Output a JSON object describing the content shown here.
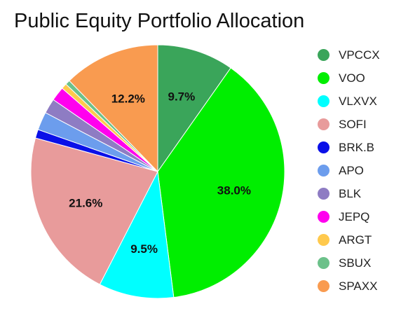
{
  "chart_data": {
    "type": "pie",
    "title": "Public Equity Portfolio Allocation",
    "start_angle": "12 o'clock",
    "direction": "clockwise",
    "legend_position": "right",
    "slices": [
      {
        "label": "VPCCX",
        "value": 9.7,
        "color": "#3aa55a",
        "data_label": "9.7%"
      },
      {
        "label": "VOO",
        "value": 38.0,
        "color": "#00ee00",
        "data_label": "38.0%"
      },
      {
        "label": "VLXVX",
        "value": 9.5,
        "color": "#00ffff",
        "data_label": "9.5%"
      },
      {
        "label": "SOFI",
        "value": 21.6,
        "color": "#e89b9b",
        "data_label": "21.6%"
      },
      {
        "label": "BRK.B",
        "value": 1.1,
        "color": "#0a10e8",
        "data_label": ""
      },
      {
        "label": "APO",
        "value": 2.3,
        "color": "#6c9ded",
        "data_label": ""
      },
      {
        "label": "BLK",
        "value": 1.9,
        "color": "#8e7cc3",
        "data_label": ""
      },
      {
        "label": "JEPQ",
        "value": 1.8,
        "color": "#ff00ee",
        "data_label": ""
      },
      {
        "label": "ARGT",
        "value": 0.7,
        "color": "#ffc94d",
        "data_label": ""
      },
      {
        "label": "SBUX",
        "value": 0.6,
        "color": "#6cc18a",
        "data_label": ""
      },
      {
        "label": "SPAXX",
        "value": 12.2,
        "color": "#f99b50",
        "data_label": "12.2%"
      }
    ]
  }
}
